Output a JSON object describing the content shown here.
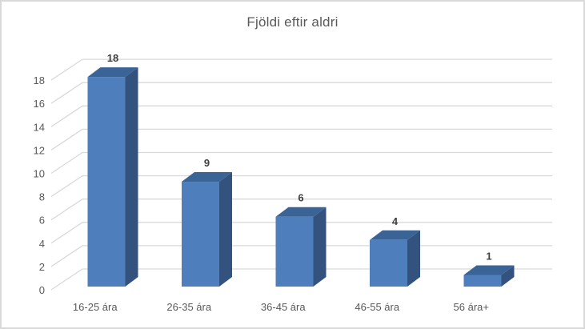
{
  "chart_data": {
    "type": "bar",
    "subtype": "3d-column",
    "title": "Fjöldi eftir aldri",
    "categories": [
      "16-25 ára",
      "26-35 ára",
      "36-45 ára",
      "46-55 ára",
      "56 ára+"
    ],
    "values": [
      18,
      9,
      6,
      4,
      1
    ],
    "data_labels": [
      "18",
      "9",
      "6",
      "4",
      "1"
    ],
    "xlabel": "",
    "ylabel": "",
    "ylim": [
      0,
      18
    ],
    "ytick_step": 2,
    "yticks": [
      0,
      2,
      4,
      6,
      8,
      10,
      12,
      14,
      16,
      18
    ],
    "grid": true,
    "legend": false,
    "colors": {
      "bar_front": "#4E7EBC",
      "bar_top": "#3A6496",
      "bar_side": "#33527E",
      "gridline": "#D9D9D9",
      "axis_label": "#595959",
      "data_label": "#404040",
      "title": "#595959",
      "border": "#D9D9D9",
      "background": "#FFFFFF"
    }
  }
}
